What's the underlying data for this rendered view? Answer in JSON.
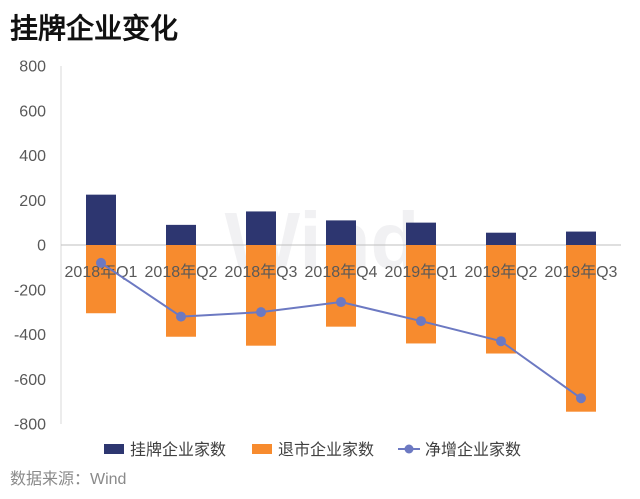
{
  "source": "数据来源：Wind",
  "watermark": "Wind",
  "chart_data": {
    "type": "bar",
    "title": "挂牌企业变化",
    "categories": [
      "2018年Q1",
      "2018年Q2",
      "2018年Q3",
      "2018年Q4",
      "2019年Q1",
      "2019年Q2",
      "2019年Q3"
    ],
    "ylim": [
      -800,
      800
    ],
    "yticks": [
      800,
      600,
      400,
      200,
      0,
      -200,
      -400,
      -600,
      -800
    ],
    "grid": false,
    "legend_position": "bottom",
    "series": [
      {
        "name": "挂牌企业家数",
        "type": "bar",
        "color": "#2D3670",
        "values": [
          225,
          90,
          150,
          110,
          100,
          55,
          60
        ]
      },
      {
        "name": "退市企业家数",
        "type": "bar",
        "color": "#F78B2E",
        "values": [
          -305,
          -410,
          -450,
          -365,
          -440,
          -485,
          -745
        ]
      },
      {
        "name": "净增企业家数",
        "type": "line",
        "color": "#6C79C2",
        "values": [
          -80,
          -320,
          -300,
          -255,
          -340,
          -430,
          -685
        ]
      }
    ]
  }
}
